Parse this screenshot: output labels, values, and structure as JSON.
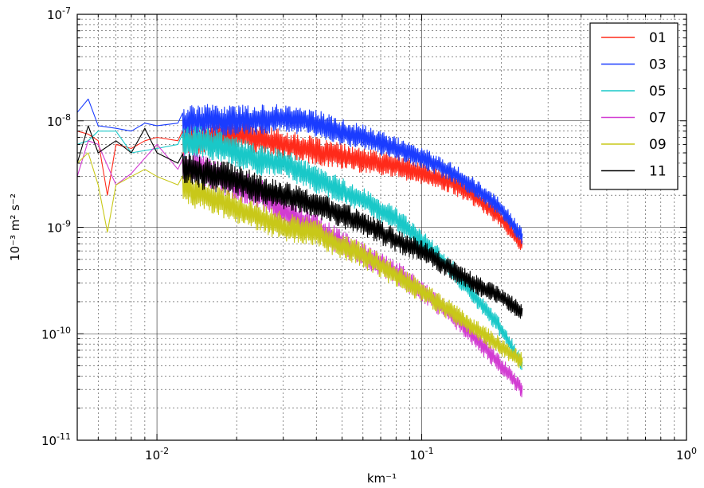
{
  "chart_data": {
    "type": "line",
    "xscale": "log",
    "yscale": "log",
    "xlim": [
      0.005,
      1.0
    ],
    "ylim": [
      1e-11,
      1e-07
    ],
    "xlabel": "km⁻¹",
    "ylabel": "10⁻³ m² s⁻²",
    "grid": true,
    "legend_position": "top-right",
    "x_ticks": [
      {
        "base": "10",
        "exp": "-2",
        "value": 0.01
      },
      {
        "base": "10",
        "exp": "-1",
        "value": 0.1
      },
      {
        "base": "10",
        "exp": "0",
        "value": 1.0
      }
    ],
    "y_ticks": [
      {
        "base": "10",
        "exp": "-11",
        "value": 1e-11
      },
      {
        "base": "10",
        "exp": "-10",
        "value": 1e-10
      },
      {
        "base": "10",
        "exp": "-9",
        "value": 1e-09
      },
      {
        "base": "10",
        "exp": "-8",
        "value": 1e-08
      },
      {
        "base": "10",
        "exp": "-7",
        "value": 1e-07
      }
    ],
    "series": [
      {
        "name": "01",
        "color": "#ff2a1a",
        "x": [
          0.005,
          0.0055,
          0.006,
          0.0065,
          0.007,
          0.008,
          0.009,
          0.01,
          0.012,
          0.015,
          0.02,
          0.03,
          0.04,
          0.06,
          0.08,
          0.1,
          0.13,
          0.16,
          0.2,
          0.24
        ],
        "y": [
          8e-09,
          7.5e-09,
          6.5e-09,
          2e-09,
          6e-09,
          5.5e-09,
          6.5e-09,
          7e-09,
          6.5e-09,
          6.8e-09,
          7.5e-09,
          6e-09,
          5.2e-09,
          4.2e-09,
          3.8e-09,
          3.2e-09,
          2.6e-09,
          1.9e-09,
          1.2e-09,
          6.8e-10
        ]
      },
      {
        "name": "03",
        "color": "#1a3cff",
        "x": [
          0.005,
          0.0055,
          0.006,
          0.007,
          0.008,
          0.009,
          0.01,
          0.012,
          0.015,
          0.02,
          0.03,
          0.04,
          0.05,
          0.06,
          0.08,
          0.1,
          0.13,
          0.16,
          0.2,
          0.24
        ],
        "y": [
          1.2e-08,
          1.6e-08,
          9e-09,
          8.5e-09,
          8e-09,
          9.5e-09,
          9e-09,
          9.5e-09,
          1e-08,
          1e-08,
          1.05e-08,
          9.5e-09,
          7.8e-09,
          7e-09,
          5.5e-09,
          4.5e-09,
          3.3e-09,
          2.3e-09,
          1.5e-09,
          8e-10
        ]
      },
      {
        "name": "05",
        "color": "#19c8c8",
        "x": [
          0.005,
          0.0055,
          0.006,
          0.007,
          0.008,
          0.01,
          0.012,
          0.015,
          0.02,
          0.025,
          0.03,
          0.04,
          0.05,
          0.06,
          0.08,
          0.1,
          0.13,
          0.16,
          0.2,
          0.24
        ],
        "y": [
          6e-09,
          6.5e-09,
          8e-09,
          8e-09,
          5e-09,
          5.5e-09,
          6e-09,
          6.5e-09,
          5e-09,
          4.2e-09,
          4e-09,
          2.8e-09,
          2.2e-09,
          1.8e-09,
          1.2e-09,
          7.5e-10,
          4e-10,
          2.2e-10,
          1.1e-10,
          5e-11
        ]
      },
      {
        "name": "07",
        "color": "#d23cd2",
        "x": [
          0.005,
          0.0055,
          0.006,
          0.007,
          0.008,
          0.01,
          0.012,
          0.015,
          0.02,
          0.025,
          0.03,
          0.04,
          0.05,
          0.06,
          0.08,
          0.1,
          0.13,
          0.16,
          0.2,
          0.24
        ],
        "y": [
          3e-09,
          6.5e-09,
          6e-09,
          2.5e-09,
          3.2e-09,
          6e-09,
          3.5e-09,
          3.5e-09,
          2.5e-09,
          2e-09,
          1.4e-09,
          1e-09,
          7e-10,
          5.5e-10,
          3.8e-10,
          2.5e-10,
          1.5e-10,
          9e-11,
          5e-11,
          3e-11
        ]
      },
      {
        "name": "09",
        "color": "#c8c819",
        "x": [
          0.005,
          0.0055,
          0.006,
          0.0065,
          0.007,
          0.008,
          0.009,
          0.01,
          0.012,
          0.015,
          0.02,
          0.025,
          0.03,
          0.04,
          0.05,
          0.06,
          0.08,
          0.1,
          0.13,
          0.16,
          0.2,
          0.24
        ],
        "y": [
          4e-09,
          5e-09,
          2.5e-09,
          9e-10,
          2.5e-09,
          3e-09,
          3.5e-09,
          3e-09,
          2.5e-09,
          2e-09,
          1.5e-09,
          1.2e-09,
          1e-09,
          9e-10,
          6.5e-10,
          5.5e-10,
          3.5e-10,
          2.5e-10,
          1.6e-10,
          1.1e-10,
          7.5e-11,
          5.5e-11
        ]
      },
      {
        "name": "11",
        "color": "#000000",
        "x": [
          0.005,
          0.0055,
          0.006,
          0.007,
          0.008,
          0.009,
          0.01,
          0.012,
          0.015,
          0.02,
          0.025,
          0.03,
          0.04,
          0.05,
          0.06,
          0.08,
          0.1,
          0.13,
          0.16,
          0.2,
          0.24
        ],
        "y": [
          4e-09,
          9e-09,
          5e-09,
          6.5e-09,
          5e-09,
          8.5e-09,
          5e-09,
          4e-09,
          3.2e-09,
          2.8e-09,
          2.2e-09,
          2e-09,
          1.6e-09,
          1.3e-09,
          1.1e-09,
          7.5e-10,
          6e-10,
          4e-10,
          2.9e-10,
          2.2e-10,
          1.6e-10
        ]
      }
    ]
  }
}
